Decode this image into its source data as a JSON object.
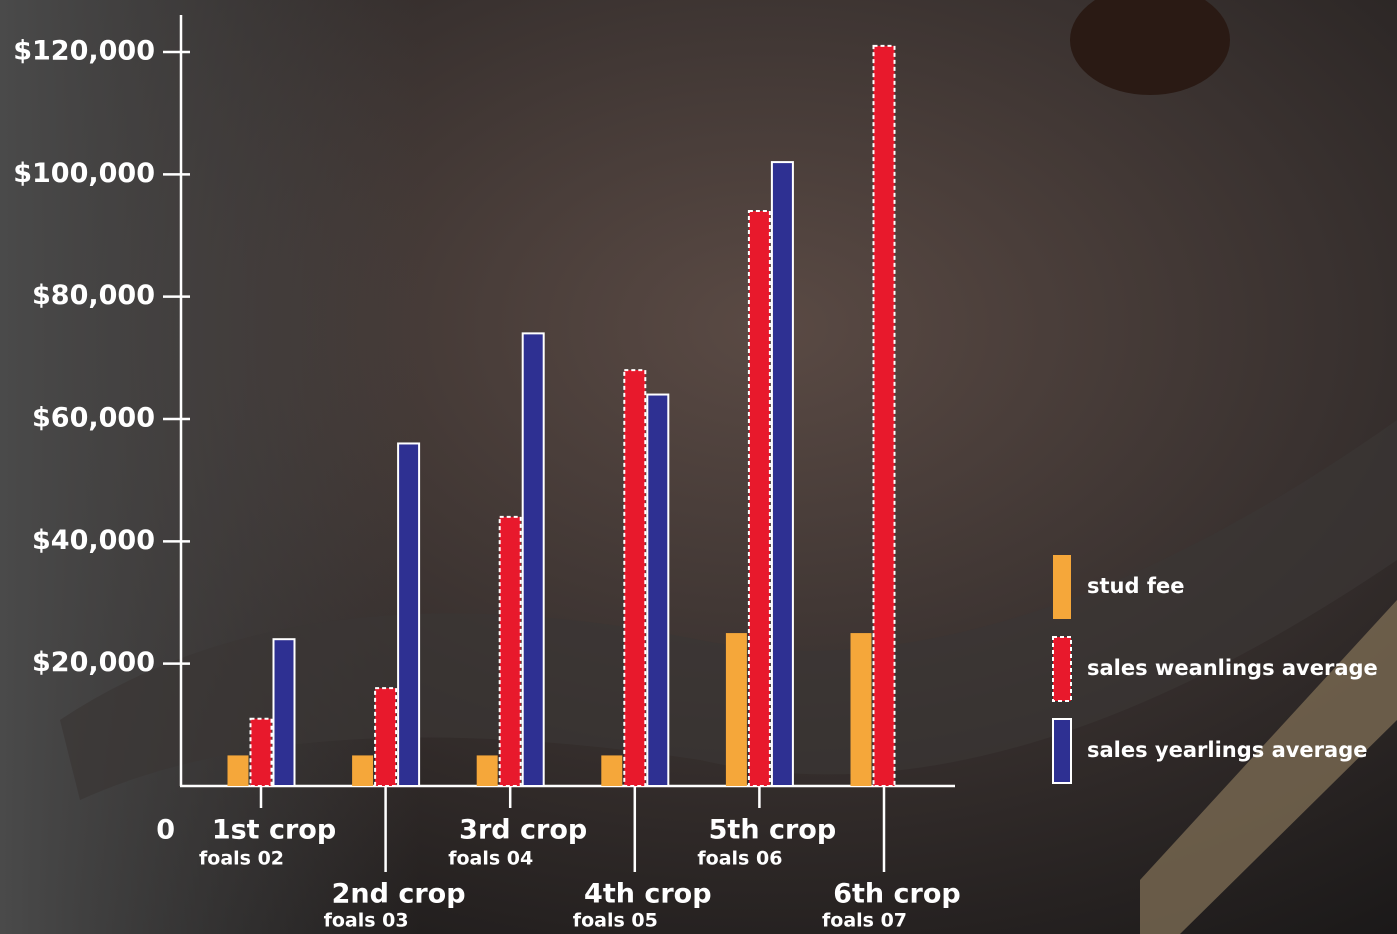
{
  "chart_data": {
    "type": "bar",
    "categories": [
      "1st crop",
      "2nd crop",
      "3rd crop",
      "4th crop",
      "5th crop",
      "6th crop"
    ],
    "category_subtitles": [
      "foals 02",
      "foals 03",
      "foals 04",
      "foals 05",
      "foals 06",
      "foals 07"
    ],
    "series": [
      {
        "name": "stud fee",
        "color": "#f5a73a",
        "values": [
          5000,
          5000,
          5000,
          5000,
          25000,
          25000
        ]
      },
      {
        "name": "sales weanlings average",
        "color": "#e8192c",
        "values": [
          11000,
          16000,
          44000,
          68000,
          94000,
          121000
        ]
      },
      {
        "name": "sales yearlings average",
        "color": "#2e3092",
        "values": [
          24000,
          56000,
          74000,
          64000,
          102000,
          null
        ]
      }
    ],
    "ylim": [
      0,
      120000
    ],
    "yticks": [
      0,
      {
        "value": 20000,
        "label": "$20,000"
      },
      {
        "value": 40000,
        "label": "$40,000"
      },
      {
        "value": 60000,
        "label": "$60,000"
      },
      {
        "value": 80000,
        "label": "$80,000"
      },
      {
        "value": 100000,
        "label": "$100,000"
      },
      {
        "value": 120000,
        "label": "$120,000"
      }
    ],
    "legend_position": "right"
  }
}
